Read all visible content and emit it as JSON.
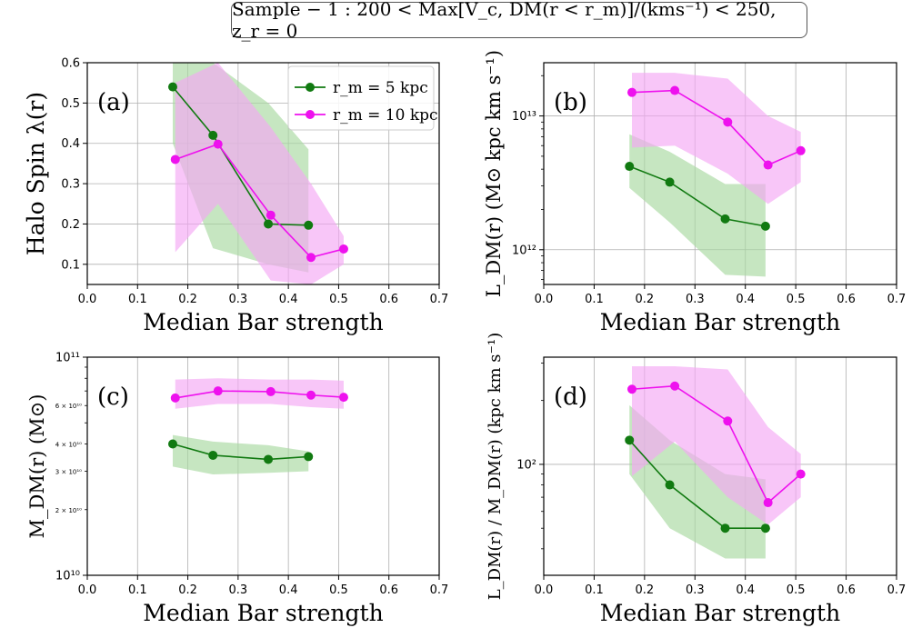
{
  "figure_title": "Sample − 1 : 200 < Max[V_c, DM(r < r_m)]/(kms⁻¹) < 250,  z_r = 0",
  "legend": [
    "r_m = 5 kpc",
    "r_m = 10 kpc"
  ],
  "colors": {
    "green": "#117a11",
    "magenta": "#ee11ee",
    "green_fill": "#a8d8a0",
    "magenta_fill": "#f4a8f4"
  },
  "chart_data": [
    {
      "type": "line",
      "panel_label": "(a)",
      "xlabel": "Median Bar strength",
      "ylabel": "Halo Spin λ(r)",
      "xlim": [
        0.0,
        0.7
      ],
      "ylim": [
        0.05,
        0.6
      ],
      "yscale": "linear",
      "xticks": [
        "0.0",
        "0.1",
        "0.2",
        "0.3",
        "0.4",
        "0.5",
        "0.6",
        "0.7"
      ],
      "yticks": [
        0.1,
        0.2,
        0.3,
        0.4,
        0.5,
        0.6
      ],
      "ytick_labels": [
        "0.1",
        "0.2",
        "0.3",
        "0.4",
        "0.5",
        "0.6"
      ],
      "legend_position": "top-right",
      "series": [
        {
          "name": "r_m = 5 kpc",
          "color": "green",
          "x": [
            0.17,
            0.25,
            0.36,
            0.44
          ],
          "y": [
            0.54,
            0.42,
            0.2,
            0.197
          ],
          "band_x": [
            0.17,
            0.25,
            0.36,
            0.44
          ],
          "band_low": [
            0.4,
            0.14,
            0.1,
            0.08
          ],
          "band_high": [
            0.6,
            0.6,
            0.5,
            0.385
          ]
        },
        {
          "name": "r_m = 10 kpc",
          "color": "magenta",
          "x": [
            0.175,
            0.26,
            0.365,
            0.445,
            0.51
          ],
          "y": [
            0.36,
            0.398,
            0.222,
            0.117,
            0.138
          ],
          "band_x": [
            0.175,
            0.26,
            0.365,
            0.445,
            0.51
          ],
          "band_low": [
            0.13,
            0.25,
            0.06,
            0.05,
            0.1
          ],
          "band_high": [
            0.55,
            0.6,
            0.44,
            0.3,
            0.17
          ]
        }
      ]
    },
    {
      "type": "line",
      "panel_label": "(b)",
      "xlabel": "Median Bar strength",
      "ylabel": "L_DM(r) (M⊙ kpc km s⁻¹)",
      "xlim": [
        0.0,
        0.7
      ],
      "ylim": [
        550000000000.0,
        25000000000000.0
      ],
      "yscale": "log",
      "xticks": [
        "0.0",
        "0.1",
        "0.2",
        "0.3",
        "0.4",
        "0.5",
        "0.6",
        "0.7"
      ],
      "yticks": [
        1000000000000.0,
        10000000000000.0
      ],
      "ytick_labels": [
        "10¹²",
        "10¹³"
      ],
      "series": [
        {
          "name": "r_m = 5 kpc",
          "color": "green",
          "x": [
            0.17,
            0.25,
            0.36,
            0.44
          ],
          "y": [
            4200000000000.0,
            3200000000000.0,
            1700000000000.0,
            1500000000000.0
          ],
          "band_x": [
            0.17,
            0.25,
            0.36,
            0.44
          ],
          "band_low": [
            2900000000000.0,
            1600000000000.0,
            650000000000.0,
            630000000000.0
          ],
          "band_high": [
            7300000000000.0,
            5400000000000.0,
            3100000000000.0,
            3100000000000.0
          ]
        },
        {
          "name": "r_m = 10 kpc",
          "color": "magenta",
          "x": [
            0.175,
            0.26,
            0.365,
            0.445,
            0.51
          ],
          "y": [
            15000000000000.0,
            15500000000000.0,
            9000000000000.0,
            4300000000000.0,
            5500000000000.0
          ],
          "band_x": [
            0.175,
            0.26,
            0.365,
            0.445,
            0.51
          ],
          "band_low": [
            5800000000000.0,
            6000000000000.0,
            3700000000000.0,
            2200000000000.0,
            3200000000000.0
          ],
          "band_high": [
            21000000000000.0,
            21000000000000.0,
            19000000000000.0,
            10000000000000.0,
            7600000000000.0
          ]
        }
      ]
    },
    {
      "type": "line",
      "panel_label": "(c)",
      "xlabel": "Median Bar strength",
      "ylabel": "M_DM(r) (M⊙)",
      "xlim": [
        0.0,
        0.7
      ],
      "ylim": [
        10000000000.0,
        100000000000.0
      ],
      "yscale": "log",
      "xticks": [
        "0.0",
        "0.1",
        "0.2",
        "0.3",
        "0.4",
        "0.5",
        "0.6",
        "0.7"
      ],
      "yticks": [
        10000000000.0,
        100000000000.0
      ],
      "ytick_labels": [
        "10¹⁰",
        "10¹¹"
      ],
      "minor_tick_labels": [
        {
          "v": 20000000000.0,
          "label": "2 × 10¹⁰"
        },
        {
          "v": 30000000000.0,
          "label": "3 × 10¹⁰"
        },
        {
          "v": 40000000000.0,
          "label": "4 × 10¹⁰"
        },
        {
          "v": 60000000000.0,
          "label": "6 × 10¹⁰"
        }
      ],
      "series": [
        {
          "name": "r_m = 5 kpc",
          "color": "green",
          "x": [
            0.17,
            0.25,
            0.36,
            0.44
          ],
          "y": [
            40000000000.0,
            35500000000.0,
            34000000000.0,
            35000000000.0
          ],
          "band_x": [
            0.17,
            0.25,
            0.36,
            0.44
          ],
          "band_low": [
            31500000000.0,
            29000000000.0,
            29500000000.0,
            30000000000.0
          ],
          "band_high": [
            44000000000.0,
            41000000000.0,
            39500000000.0,
            37000000000.0
          ]
        },
        {
          "name": "r_m = 10 kpc",
          "color": "magenta",
          "x": [
            0.175,
            0.26,
            0.365,
            0.445,
            0.51
          ],
          "y": [
            65000000000.0,
            70000000000.0,
            69500000000.0,
            67000000000.0,
            65500000000.0
          ],
          "band_x": [
            0.175,
            0.26,
            0.365,
            0.445,
            0.51
          ],
          "band_low": [
            58000000000.0,
            61000000000.0,
            61000000000.0,
            59000000000.0,
            58000000000.0
          ],
          "band_high": [
            79000000000.0,
            80000000000.0,
            79000000000.0,
            79000000000.0,
            78000000000.0
          ]
        }
      ]
    },
    {
      "type": "line",
      "panel_label": "(d)",
      "xlabel": "Median Bar strength",
      "ylabel": "L_DM(r) / M_DM(r) (kpc km s⁻¹)",
      "xlim": [
        0.0,
        0.7
      ],
      "ylim": [
        30,
        320
      ],
      "yscale": "log",
      "xticks": [
        "0.0",
        "0.1",
        "0.2",
        "0.3",
        "0.4",
        "0.5",
        "0.6",
        "0.7"
      ],
      "yticks": [
        100
      ],
      "ytick_labels": [
        "10²"
      ],
      "series": [
        {
          "name": "r_m = 5 kpc",
          "color": "green",
          "x": [
            0.17,
            0.25,
            0.36,
            0.44
          ],
          "y": [
            130,
            80,
            50,
            50
          ],
          "band_x": [
            0.17,
            0.25,
            0.36,
            0.44
          ],
          "band_low": [
            90,
            50,
            36,
            36
          ],
          "band_high": [
            190,
            130,
            90,
            85
          ]
        },
        {
          "name": "r_m = 10 kpc",
          "color": "magenta",
          "x": [
            0.175,
            0.26,
            0.365,
            0.445,
            0.51
          ],
          "y": [
            226,
            234,
            160,
            66,
            90
          ],
          "band_x": [
            0.175,
            0.26,
            0.365,
            0.445,
            0.51
          ],
          "band_low": [
            88,
            128,
            70,
            52,
            70
          ],
          "band_high": [
            290,
            290,
            280,
            150,
            112
          ]
        }
      ]
    }
  ]
}
